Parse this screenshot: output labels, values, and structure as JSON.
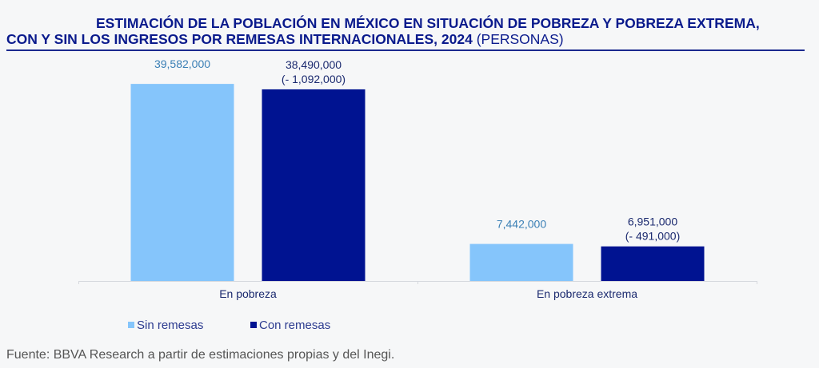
{
  "header": {
    "title_line1": "ESTIMACIÓN DE LA POBLACIÓN EN MÉXICO EN SITUACIÓN DE POBREZA Y POBREZA EXTREMA,",
    "title_line2": "CON Y SIN LOS INGRESOS POR REMESAS INTERNACIONALES, 2024",
    "title_unit": "(PERSONAS)"
  },
  "colors": {
    "sin_remesas": "#85c5fb",
    "con_remesas": "#001391",
    "title": "#0a1a8c",
    "label_light": "#3a7fb5",
    "label_dark": "#1b2a6f"
  },
  "chart_data": {
    "type": "bar",
    "title": "ESTIMACIÓN DE LA POBLACIÓN EN MÉXICO EN SITUACIÓN DE POBREZA Y POBREZA EXTREMA, CON Y SIN LOS INGRESOS POR REMESAS INTERNACIONALES, 2024 (PERSONAS)",
    "categories": [
      "En pobreza",
      "En pobreza extrema"
    ],
    "series": [
      {
        "name": "Sin remesas",
        "values": [
          39582000,
          7442000
        ],
        "labels": [
          "39,582,000",
          "7,442,000"
        ],
        "diff_labels": [
          "",
          ""
        ]
      },
      {
        "name": "Con remesas",
        "values": [
          38490000,
          6951000
        ],
        "labels": [
          "38,490,000",
          "6,951,000"
        ],
        "diff_labels": [
          "(- 1,092,000)",
          "(- 491,000)"
        ]
      }
    ],
    "xlabel": "",
    "ylabel": "",
    "ylim": [
      0,
      45000000
    ],
    "grid": false,
    "legend": "bottom-center"
  },
  "source": "Fuente: BBVA Research a partir de estimaciones propias y del Inegi."
}
